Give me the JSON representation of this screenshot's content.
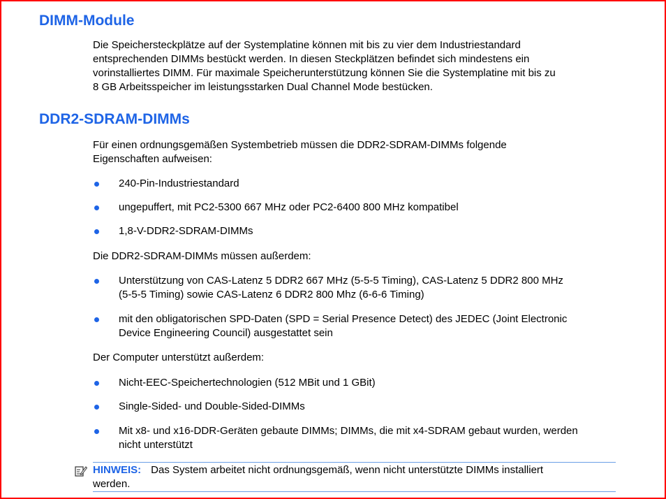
{
  "sections": [
    {
      "heading": "DIMM-Module",
      "paragraph": [
        "Die Speichersteckplätze auf der Systemplatine können mit bis zu vier dem Industriestandard",
        "entsprechenden DIMMs bestückt werden. In diesen Steckplätzen befindet sich mindestens ein",
        "vorinstalliertes DIMM. Für maximale Speicherunterstützung können Sie die Systemplatine mit bis zu",
        "8 GB Arbeitsspeicher im leistungsstarken Dual Channel Mode bestücken."
      ]
    },
    {
      "heading": "DDR2-SDRAM-DIMMs",
      "intro": [
        "Für einen ordnungsgemäßen Systembetrieb müssen die DDR2-SDRAM-DIMMs folgende",
        "Eigenschaften aufweisen:"
      ],
      "bullets1": [
        [
          "240-Pin-Industriestandard"
        ],
        [
          "ungepuffert, mit PC2-5300 667 MHz oder PC2-6400 800 MHz kompatibel"
        ],
        [
          "1,8-V-DDR2-SDRAM-DIMMs"
        ]
      ],
      "para2": "Die DDR2-SDRAM-DIMMs müssen außerdem:",
      "bullets2": [
        [
          "Unterstützung von CAS-Latenz 5 DDR2 667 MHz (5-5-5 Timing), CAS-Latenz 5 DDR2 800 MHz",
          "(5-5-5 Timing) sowie CAS-Latenz 6 DDR2 800 Mhz (6-6-6 Timing)"
        ],
        [
          "mit den obligatorischen SPD-Daten (SPD = Serial Presence Detect) des JEDEC (Joint Electronic",
          "Device Engineering Council) ausgestattet sein"
        ]
      ],
      "para3": "Der Computer unterstützt außerdem:",
      "bullets3": [
        [
          "Nicht-EEC-Speichertechnologien (512 MBit und 1 GBit)"
        ],
        [
          "Single-Sided- und Double-Sided-DIMMs"
        ],
        [
          "Mit x8- und x16-DDR-Geräten gebaute DIMMs; DIMMs, die mit x4-SDRAM gebaut wurden, werden",
          "nicht unterstützt"
        ]
      ]
    }
  ],
  "note": {
    "icon": "note-pencil-icon",
    "label": "HINWEIS:",
    "text": "Das System arbeitet nicht ordnungsgemäß, wenn nicht unterstützte DIMMs installiert",
    "text2": "werden."
  },
  "colors": {
    "heading": "#1e64e6",
    "frame": "#ff0000"
  }
}
